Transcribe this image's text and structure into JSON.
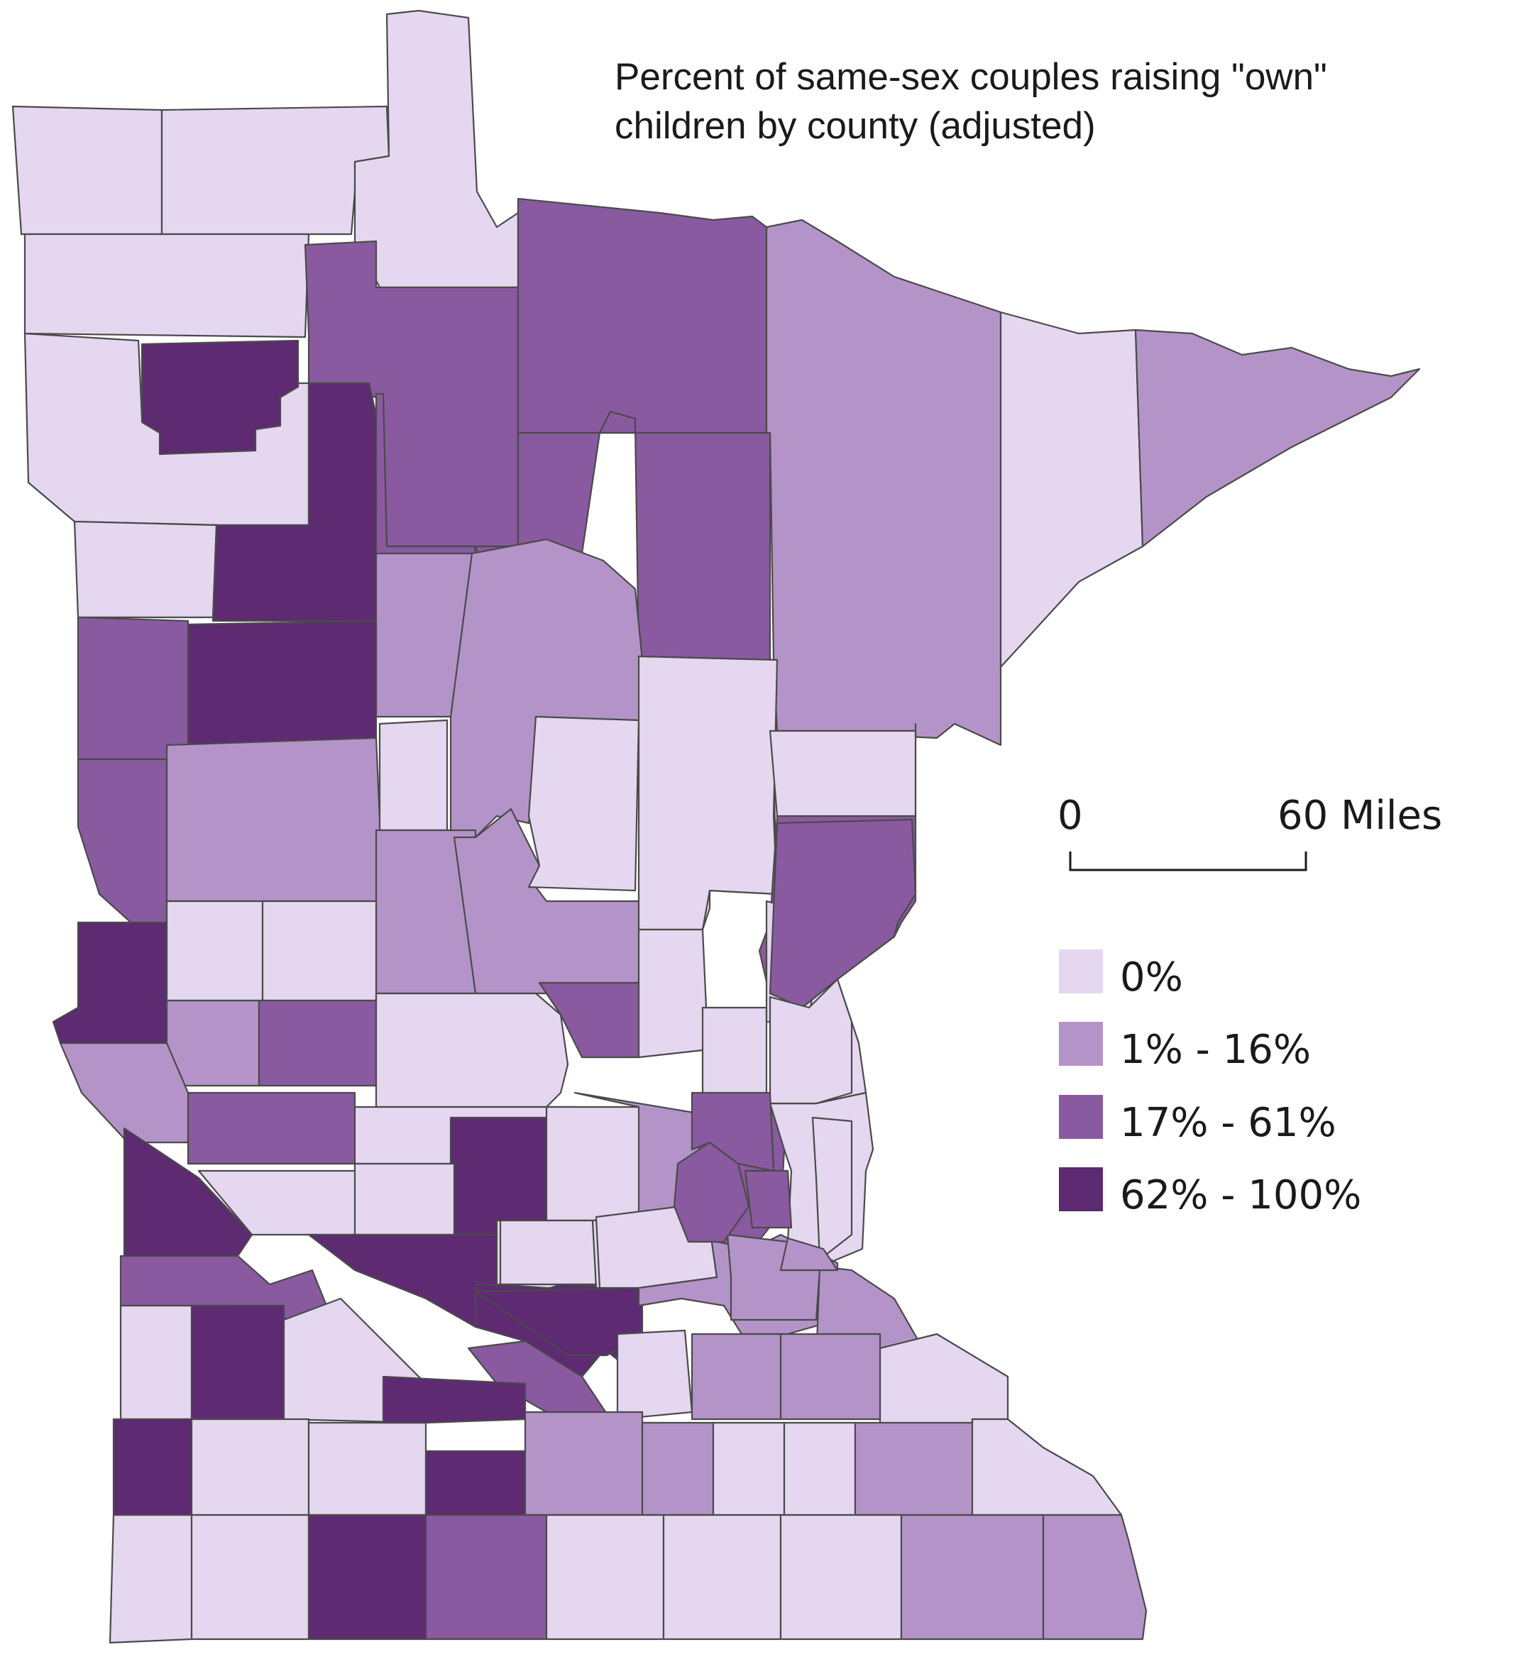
{
  "title": {
    "line1": "Percent of same-sex couples raising \"own\"",
    "line2": "children by county (adjusted)"
  },
  "scale_bar": {
    "start_label": "0",
    "end_label": "60 Miles"
  },
  "legend": [
    {
      "label": "0%",
      "color": "#e5d7f0"
    },
    {
      "label": "1% - 16%",
      "color": "#b494c8"
    },
    {
      "label": "17% - 61%",
      "color": "#8a5aa0"
    },
    {
      "label": "62% - 100%",
      "color": "#5e2a72"
    }
  ],
  "colors": {
    "border": "#4a4a4a",
    "background": "#ffffff"
  }
}
